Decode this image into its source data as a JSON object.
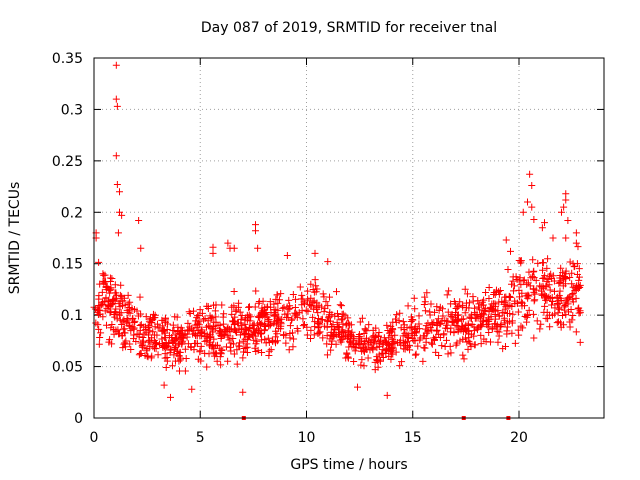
{
  "chart_data": {
    "type": "scatter",
    "title": "Day 087 of 2019, SRMTID for receiver tnal",
    "xlabel": "GPS time / hours",
    "ylabel": "SRMTID / TECUs",
    "xlim": [
      0,
      24
    ],
    "ylim": [
      0,
      0.35
    ],
    "xticks": [
      0,
      5,
      10,
      15,
      20
    ],
    "xtick_labels": [
      "0",
      "5",
      "10",
      "15",
      "20"
    ],
    "yticks": [
      0,
      0.05,
      0.1,
      0.15,
      0.2,
      0.25,
      0.3,
      0.35
    ],
    "ytick_labels": [
      "0",
      "0.05",
      "0.1",
      "0.15",
      "0.2",
      "0.25",
      "0.3",
      "0.35"
    ],
    "grid": true,
    "marker": "+",
    "color": "#ff0000",
    "series": [
      {
        "name": "SRMTID",
        "profile": [
          [
            0.0,
            0.11
          ],
          [
            0.5,
            0.115
          ],
          [
            1.0,
            0.105
          ],
          [
            1.5,
            0.095
          ],
          [
            2.0,
            0.09
          ],
          [
            2.5,
            0.085
          ],
          [
            3.0,
            0.08
          ],
          [
            3.5,
            0.072
          ],
          [
            4.0,
            0.07
          ],
          [
            4.5,
            0.08
          ],
          [
            5.0,
            0.08
          ],
          [
            5.5,
            0.085
          ],
          [
            6.0,
            0.082
          ],
          [
            6.5,
            0.085
          ],
          [
            7.0,
            0.085
          ],
          [
            7.5,
            0.09
          ],
          [
            8.0,
            0.09
          ],
          [
            8.5,
            0.095
          ],
          [
            9.0,
            0.1
          ],
          [
            9.5,
            0.1
          ],
          [
            10.0,
            0.11
          ],
          [
            10.5,
            0.1
          ],
          [
            11.0,
            0.09
          ],
          [
            11.5,
            0.085
          ],
          [
            12.0,
            0.08
          ],
          [
            12.5,
            0.075
          ],
          [
            13.0,
            0.072
          ],
          [
            13.5,
            0.07
          ],
          [
            14.0,
            0.072
          ],
          [
            14.5,
            0.08
          ],
          [
            15.0,
            0.085
          ],
          [
            15.5,
            0.085
          ],
          [
            16.0,
            0.085
          ],
          [
            16.5,
            0.085
          ],
          [
            17.0,
            0.09
          ],
          [
            17.5,
            0.09
          ],
          [
            18.0,
            0.095
          ],
          [
            18.5,
            0.1
          ],
          [
            19.0,
            0.1
          ],
          [
            19.5,
            0.105
          ],
          [
            20.0,
            0.12
          ],
          [
            20.5,
            0.125
          ],
          [
            21.0,
            0.125
          ],
          [
            21.5,
            0.12
          ],
          [
            22.0,
            0.12
          ],
          [
            22.5,
            0.12
          ],
          [
            22.9,
            0.12
          ]
        ],
        "outliers": [
          [
            1.05,
            0.343
          ],
          [
            1.05,
            0.31
          ],
          [
            1.1,
            0.303
          ],
          [
            1.05,
            0.255
          ],
          [
            1.1,
            0.227
          ],
          [
            1.2,
            0.22
          ],
          [
            1.2,
            0.2
          ],
          [
            1.3,
            0.197
          ],
          [
            1.15,
            0.18
          ],
          [
            0.1,
            0.18
          ],
          [
            0.1,
            0.175
          ],
          [
            2.1,
            0.192
          ],
          [
            2.2,
            0.165
          ],
          [
            7.6,
            0.188
          ],
          [
            7.6,
            0.182
          ],
          [
            7.7,
            0.165
          ],
          [
            5.6,
            0.166
          ],
          [
            5.6,
            0.16
          ],
          [
            6.4,
            0.165
          ],
          [
            6.6,
            0.165
          ],
          [
            6.3,
            0.17
          ],
          [
            10.4,
            0.16
          ],
          [
            9.1,
            0.158
          ],
          [
            11.0,
            0.152
          ],
          [
            20.5,
            0.237
          ],
          [
            20.6,
            0.226
          ],
          [
            20.4,
            0.21
          ],
          [
            20.6,
            0.205
          ],
          [
            20.7,
            0.193
          ],
          [
            20.2,
            0.2
          ],
          [
            22.2,
            0.218
          ],
          [
            22.2,
            0.212
          ],
          [
            22.1,
            0.205
          ],
          [
            22.0,
            0.2
          ],
          [
            22.3,
            0.192
          ],
          [
            22.2,
            0.175
          ],
          [
            21.2,
            0.19
          ],
          [
            21.6,
            0.175
          ],
          [
            22.7,
            0.18
          ],
          [
            22.7,
            0.17
          ],
          [
            19.4,
            0.173
          ],
          [
            19.6,
            0.162
          ],
          [
            21.1,
            0.185
          ],
          [
            3.6,
            0.02
          ],
          [
            13.8,
            0.022
          ],
          [
            7.0,
            0.025
          ],
          [
            4.6,
            0.028
          ],
          [
            3.3,
            0.032
          ],
          [
            12.4,
            0.03
          ]
        ]
      }
    ],
    "axis_markers_x": [
      7.05,
      17.4,
      19.5
    ]
  }
}
